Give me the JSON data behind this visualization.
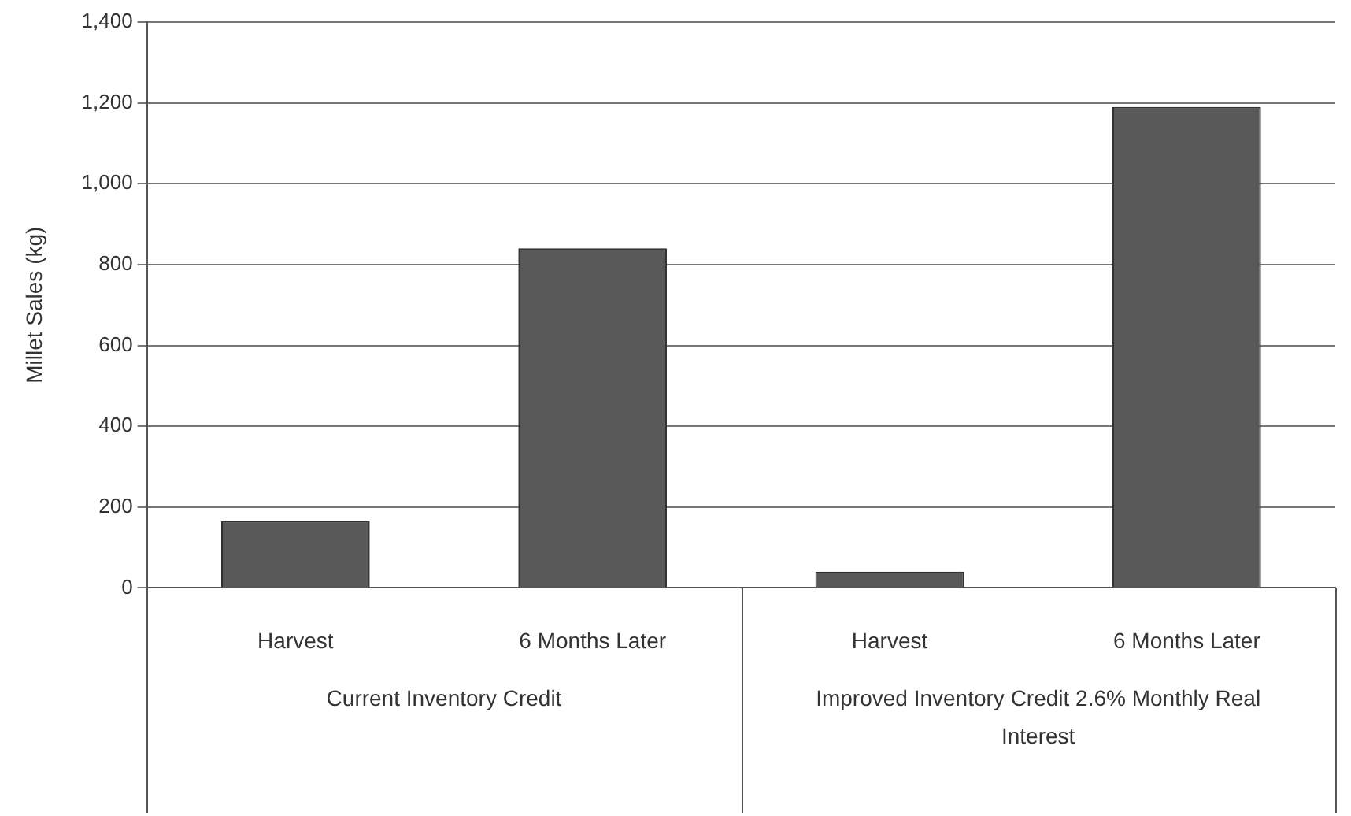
{
  "chart_data": {
    "type": "bar",
    "ylabel": "Millet Sales (kg)",
    "categories": [
      "Harvest",
      "6 Months Later",
      "Harvest",
      "6 Months Later"
    ],
    "values": [
      165,
      840,
      40,
      1190
    ],
    "color": "#595959",
    "ylim": [
      0,
      1400
    ],
    "yticks": [
      {
        "value": 0,
        "label": "0"
      },
      {
        "value": 200,
        "label": "200"
      },
      {
        "value": 400,
        "label": "400"
      },
      {
        "value": 600,
        "label": "600"
      },
      {
        "value": 800,
        "label": "800"
      },
      {
        "value": 1000,
        "label": "1,000"
      },
      {
        "value": 1200,
        "label": "1,200"
      },
      {
        "value": 1400,
        "label": "1,400"
      }
    ],
    "grid": "y",
    "annotations": [
      "Current Inventory Credit",
      "Improved Inventory Credit 2.6% Monthly Real Interest"
    ]
  }
}
